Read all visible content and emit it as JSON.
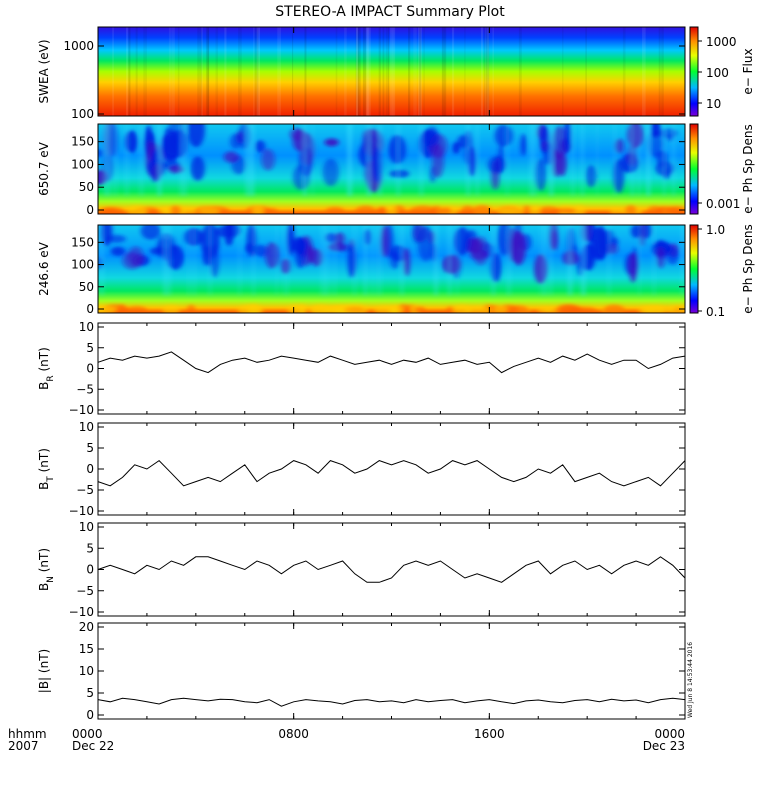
{
  "chart_data": {
    "title": "STEREO-A IMPACT Summary Plot",
    "type": "multi-panel",
    "x_axis": {
      "tick_labels": [
        "0000",
        "0800",
        "1600",
        "0000"
      ],
      "date_labels": [
        "Dec 22",
        "",
        "",
        "Dec 23"
      ],
      "time_label": "hhmm",
      "year_label": "2007",
      "range_hours": [
        0,
        24
      ]
    },
    "panels": [
      {
        "id": "swea",
        "type": "heatmap",
        "ylabel": "SWEA (eV)",
        "y_scale": "log",
        "ylim": [
          100,
          2000
        ],
        "yticks": [
          "1000",
          "100"
        ],
        "colorbar": {
          "label": "e− Flux",
          "scale": "log",
          "ticks": [
            "1000",
            "100",
            "10"
          ]
        }
      },
      {
        "id": "pad650",
        "type": "heatmap",
        "ylabel": "650.7 eV",
        "ylim": [
          0,
          180
        ],
        "yticks": [
          "150",
          "100",
          "50",
          "0"
        ],
        "colorbar": {
          "label": "e− Ph Sp Dens",
          "scale": "log",
          "ticks": [
            "0.001"
          ]
        }
      },
      {
        "id": "pad246",
        "type": "heatmap",
        "ylabel": "246.6 eV",
        "ylim": [
          0,
          180
        ],
        "yticks": [
          "150",
          "100",
          "50",
          "0"
        ],
        "colorbar": {
          "label": "e− Ph Sp Dens",
          "scale": "log",
          "ticks": [
            "1.0",
            "0.1"
          ]
        }
      },
      {
        "id": "br",
        "type": "line",
        "ylabel": "B",
        "ylabel_sub": "R",
        "ylabel_unit": " (nT)",
        "ylim": [
          -10,
          10
        ],
        "yticks": [
          "10",
          "5",
          "0",
          "−5",
          "−10"
        ],
        "x_hours": [
          0,
          0.5,
          1,
          1.5,
          2,
          2.5,
          3,
          3.5,
          4,
          4.5,
          5,
          5.5,
          6,
          6.5,
          7,
          7.5,
          8,
          8.5,
          9,
          9.5,
          10,
          10.5,
          11,
          11.5,
          12,
          12.5,
          13,
          13.5,
          14,
          14.5,
          15,
          15.5,
          16,
          16.5,
          17,
          17.5,
          18,
          18.5,
          19,
          19.5,
          20,
          20.5,
          21,
          21.5,
          22,
          22.5,
          23,
          23.5,
          24
        ],
        "values": [
          1.5,
          2.5,
          2,
          3,
          2.5,
          3,
          4,
          2,
          0,
          -1,
          1,
          2,
          2.5,
          1.5,
          2,
          3,
          2.5,
          2,
          1.5,
          3,
          2,
          1,
          1.5,
          2,
          1,
          2,
          1.5,
          2.5,
          1,
          1.5,
          2,
          1,
          1.5,
          -1,
          0.5,
          1.5,
          2.5,
          1.5,
          3,
          2,
          3.5,
          2,
          1,
          2,
          2,
          0,
          1,
          2.5,
          3
        ]
      },
      {
        "id": "bt",
        "type": "line",
        "ylabel": "B",
        "ylabel_sub": "T",
        "ylabel_unit": " (nT)",
        "ylim": [
          -10,
          10
        ],
        "yticks": [
          "10",
          "5",
          "0",
          "−5",
          "−10"
        ],
        "x_hours": [
          0,
          0.5,
          1,
          1.5,
          2,
          2.5,
          3,
          3.5,
          4,
          4.5,
          5,
          5.5,
          6,
          6.5,
          7,
          7.5,
          8,
          8.5,
          9,
          9.5,
          10,
          10.5,
          11,
          11.5,
          12,
          12.5,
          13,
          13.5,
          14,
          14.5,
          15,
          15.5,
          16,
          16.5,
          17,
          17.5,
          18,
          18.5,
          19,
          19.5,
          20,
          20.5,
          21,
          21.5,
          22,
          22.5,
          23,
          23.5,
          24
        ],
        "values": [
          -3,
          -4,
          -2,
          1,
          0,
          2,
          -1,
          -4,
          -3,
          -2,
          -3,
          -1,
          1,
          -3,
          -1,
          0,
          2,
          1,
          -1,
          2,
          1,
          -1,
          0,
          2,
          1,
          2,
          1,
          -1,
          0,
          2,
          1,
          2,
          0,
          -2,
          -3,
          -2,
          0,
          -1,
          1,
          -3,
          -2,
          -1,
          -3,
          -4,
          -3,
          -2,
          -4,
          -1,
          2
        ]
      },
      {
        "id": "bn",
        "type": "line",
        "ylabel": "B",
        "ylabel_sub": "N",
        "ylabel_unit": " (nT)",
        "ylim": [
          -10,
          10
        ],
        "yticks": [
          "10",
          "5",
          "0",
          "−5",
          "−10"
        ],
        "x_hours": [
          0,
          0.5,
          1,
          1.5,
          2,
          2.5,
          3,
          3.5,
          4,
          4.5,
          5,
          5.5,
          6,
          6.5,
          7,
          7.5,
          8,
          8.5,
          9,
          9.5,
          10,
          10.5,
          11,
          11.5,
          12,
          12.5,
          13,
          13.5,
          14,
          14.5,
          15,
          15.5,
          16,
          16.5,
          17,
          17.5,
          18,
          18.5,
          19,
          19.5,
          20,
          20.5,
          21,
          21.5,
          22,
          22.5,
          23,
          23.5,
          24
        ],
        "values": [
          0,
          1,
          0,
          -1,
          1,
          0,
          2,
          1,
          3,
          3,
          2,
          1,
          0,
          2,
          1,
          -1,
          1,
          2,
          0,
          1,
          2,
          -1,
          -3,
          -3,
          -2,
          1,
          2,
          1,
          2,
          0,
          -2,
          -1,
          -2,
          -3,
          -1,
          1,
          2,
          -1,
          1,
          2,
          0,
          1,
          -1,
          1,
          2,
          1,
          3,
          1,
          -2
        ]
      },
      {
        "id": "bmag",
        "type": "line",
        "ylabel": "|B| (nT)",
        "ylim": [
          0,
          20
        ],
        "yticks": [
          "20",
          "15",
          "10",
          "5",
          "0"
        ],
        "x_hours": [
          0,
          0.5,
          1,
          1.5,
          2,
          2.5,
          3,
          3.5,
          4,
          4.5,
          5,
          5.5,
          6,
          6.5,
          7,
          7.5,
          8,
          8.5,
          9,
          9.5,
          10,
          10.5,
          11,
          11.5,
          12,
          12.5,
          13,
          13.5,
          14,
          14.5,
          15,
          15.5,
          16,
          16.5,
          17,
          17.5,
          18,
          18.5,
          19,
          19.5,
          20,
          20.5,
          21,
          21.5,
          22,
          22.5,
          23,
          23.5,
          24
        ],
        "values": [
          3.5,
          3,
          3.8,
          3.5,
          3,
          2.5,
          3.5,
          3.8,
          3.5,
          3.2,
          3.6,
          3.5,
          3,
          2.8,
          3.5,
          2,
          3,
          3.5,
          3.2,
          3,
          2.5,
          3.3,
          3.5,
          3,
          3.2,
          2.8,
          3.5,
          3,
          3.3,
          3.5,
          2.8,
          3.2,
          3.5,
          3,
          2.6,
          3.2,
          3.4,
          3,
          2.8,
          3.3,
          3.5,
          3,
          3.6,
          3.2,
          3.4,
          2.8,
          3.5,
          3.8,
          3.5
        ]
      }
    ]
  },
  "page": {
    "timestamp": "Wed Jun  8 14:53:44 2016"
  }
}
